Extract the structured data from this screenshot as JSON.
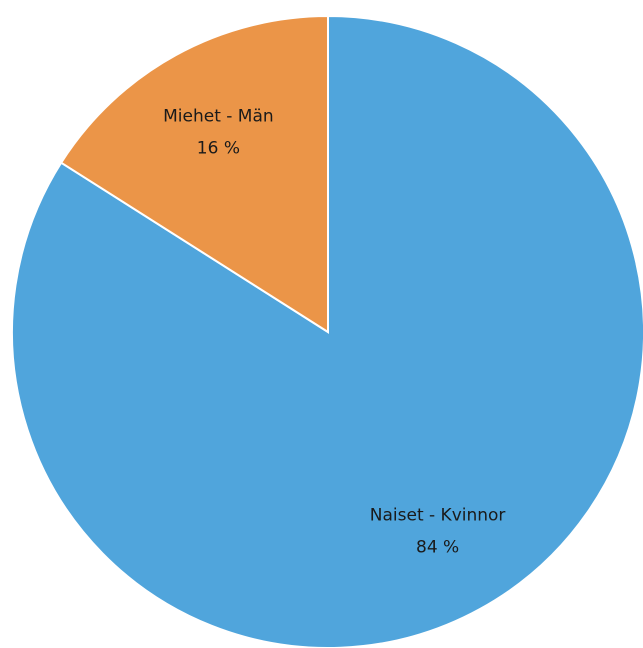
{
  "chart_data": {
    "type": "pie",
    "categories": [
      "Naiset - Kvinnor",
      "Miehet - Män"
    ],
    "values": [
      84,
      16
    ],
    "value_labels": [
      "84 %",
      "16 %"
    ],
    "colors": [
      "#50a5dc",
      "#eb9548"
    ]
  }
}
